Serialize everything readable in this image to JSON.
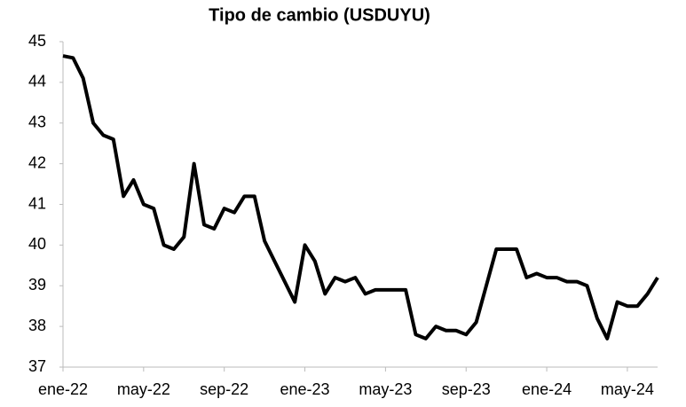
{
  "chart_data": {
    "type": "line",
    "title": "Tipo de cambio (USDUYU)",
    "x": [
      "ene-22",
      null,
      null,
      null,
      null,
      null,
      null,
      null,
      "may-22",
      null,
      null,
      null,
      null,
      null,
      null,
      null,
      "sep-22",
      null,
      null,
      null,
      null,
      null,
      null,
      null,
      "ene-23",
      null,
      null,
      null,
      null,
      null,
      null,
      null,
      "may-23",
      null,
      null,
      null,
      null,
      null,
      null,
      null,
      "sep-23",
      null,
      null,
      null,
      null,
      null,
      null,
      null,
      "ene-24",
      null,
      null,
      null,
      null,
      null,
      null,
      null,
      "may-24",
      null,
      null,
      null
    ],
    "series": [
      {
        "color": "#000000",
        "values": [
          44.65,
          44.6,
          44.1,
          43.0,
          42.7,
          42.6,
          41.2,
          41.6,
          41.0,
          40.9,
          40.0,
          39.9,
          40.2,
          42.0,
          40.5,
          40.4,
          40.9,
          40.8,
          41.2,
          41.2,
          40.1,
          39.6,
          39.1,
          38.6,
          40.0,
          39.6,
          38.8,
          39.2,
          39.1,
          39.2,
          38.8,
          38.9,
          38.9,
          38.9,
          38.9,
          37.8,
          37.7,
          38.0,
          37.9,
          37.9,
          37.8,
          38.1,
          39.0,
          39.9,
          39.9,
          39.9,
          39.2,
          39.3,
          39.2,
          39.2,
          39.1,
          39.1,
          39.0,
          38.2,
          37.7,
          38.6,
          38.5,
          38.5,
          38.8,
          39.2
        ]
      }
    ],
    "ylim": [
      37,
      45
    ],
    "yticks": [
      37,
      38,
      39,
      40,
      41,
      42,
      43,
      44,
      45
    ],
    "grid": false
  }
}
